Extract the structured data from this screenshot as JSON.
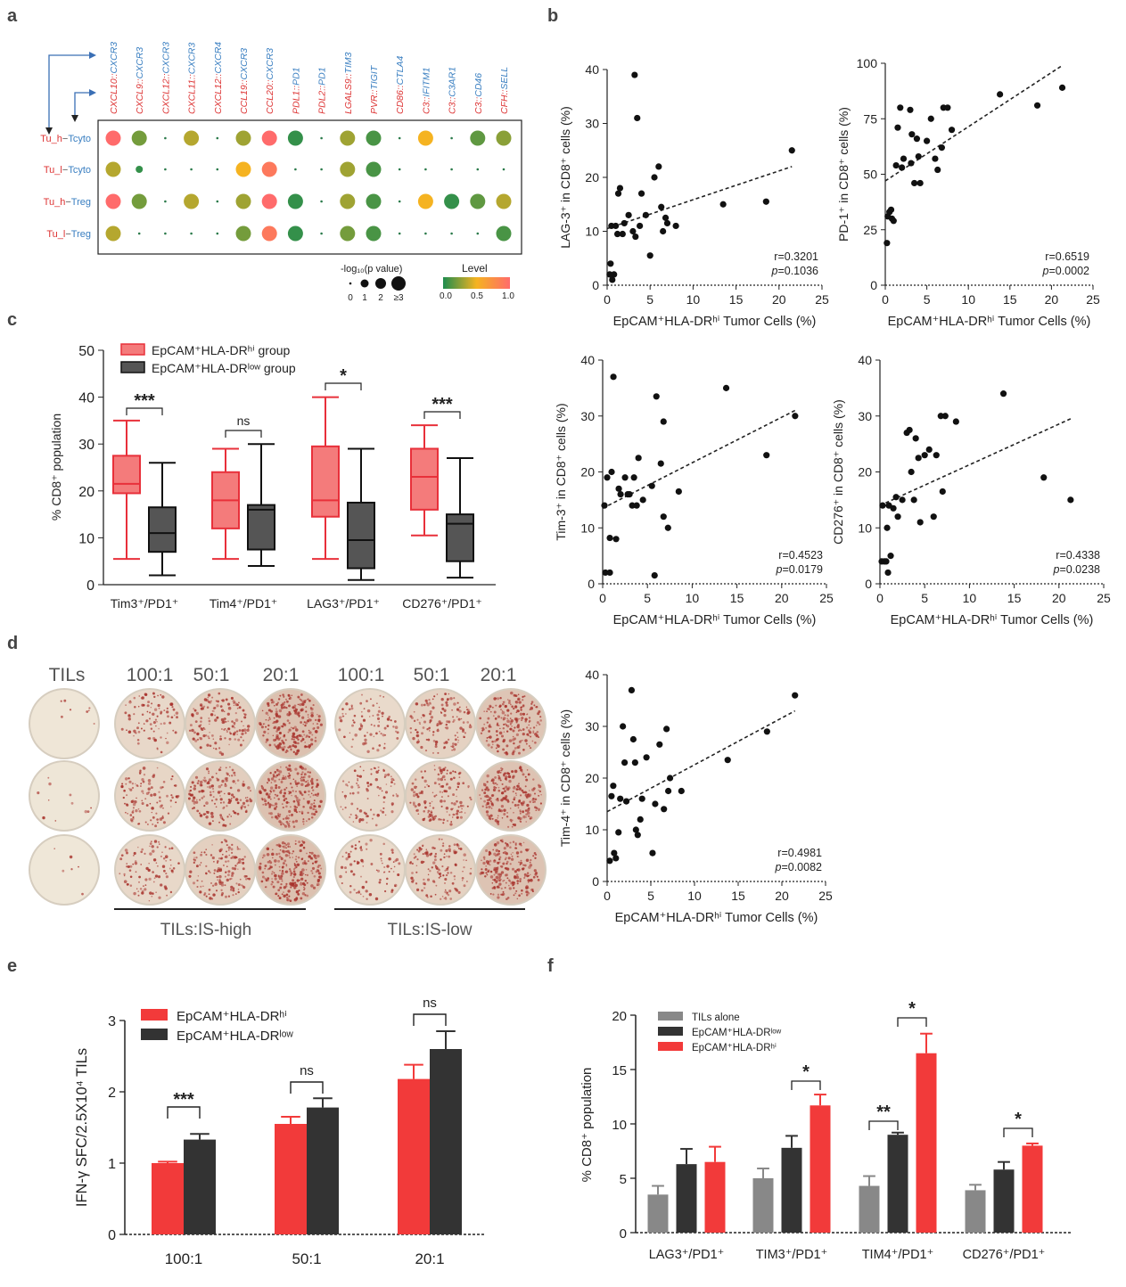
{
  "panels": {
    "a": "a",
    "b": "b",
    "c": "c",
    "d": "d",
    "e": "e",
    "f": "f"
  },
  "chart_data": [
    {
      "id": "a",
      "type": "heatmap",
      "title": "",
      "columns": [
        "CXCL10::CXCR3",
        "CXCL9::CXCR3",
        "CXCL12::CXCR3",
        "CXCL11::CXCR3",
        "CXCL12::CXCR4",
        "CCL19::CXCR3",
        "CCL20::CXCR3",
        "PDL1::PD1",
        "PDL2::PD1",
        "LGALS9::TIM3",
        "PVR::TIGIT",
        "CD86::CTLA4",
        "C3::IFITM1",
        "C3::C3AR1",
        "C3::CD46",
        "CFH::SELL"
      ],
      "ligand_colors": [
        "#d33",
        "#d33",
        "#d33",
        "#d33",
        "#d33",
        "#d33",
        "#d33",
        "#d33",
        "#d33",
        "#d33",
        "#d33",
        "#d33",
        "#d33",
        "#d33",
        "#d33",
        "#d33"
      ],
      "receptor_color": "#3a7fc1",
      "rows": [
        {
          "label": "Tu_h−Tcyto",
          "sender": "Tu_h",
          "receiver": "Tcyto"
        },
        {
          "label": "Tu_l−Tcyto",
          "sender": "Tu_l",
          "receiver": "Tcyto"
        },
        {
          "label": "Tu_h−Treg",
          "sender": "Tu_h",
          "receiver": "Treg"
        },
        {
          "label": "Tu_l−Treg",
          "sender": "Tu_l",
          "receiver": "Treg"
        }
      ],
      "size_pvalue": [
        [
          3,
          3,
          0,
          3,
          0,
          3,
          3,
          3,
          0,
          3,
          3,
          0,
          3,
          0,
          3,
          3
        ],
        [
          3,
          1,
          0,
          0,
          0,
          3,
          3,
          0,
          0,
          3,
          3,
          0,
          0,
          0,
          0,
          0
        ],
        [
          3,
          3,
          0,
          3,
          0,
          3,
          3,
          3,
          0,
          3,
          3,
          0,
          3,
          3,
          3,
          3
        ],
        [
          3,
          0,
          0,
          0,
          0,
          3,
          3,
          3,
          0,
          3,
          3,
          0,
          0,
          0,
          0,
          3
        ]
      ],
      "level": [
        [
          1.0,
          0.2,
          0,
          0.35,
          0,
          0.3,
          1.0,
          0.05,
          0,
          0.3,
          0.1,
          0,
          0.5,
          0,
          0.15,
          0.25
        ],
        [
          0.35,
          0.05,
          0,
          0,
          0,
          0.5,
          0.9,
          0,
          0,
          0.3,
          0.1,
          0,
          0,
          0,
          0,
          0
        ],
        [
          1.0,
          0.2,
          0,
          0.35,
          0,
          0.3,
          1.0,
          0.05,
          0,
          0.3,
          0.1,
          0,
          0.5,
          0.05,
          0.15,
          0.35
        ],
        [
          0.35,
          0,
          0,
          0,
          0,
          0.2,
          0.9,
          0.05,
          0,
          0.2,
          0.1,
          0,
          0,
          0,
          0,
          0.1
        ]
      ],
      "size_legend_title": "-log₁₀(p value)",
      "size_legend_ticks": [
        "0",
        "1",
        "2",
        "≥3"
      ],
      "color_legend_title": "Level",
      "color_legend_ticks": [
        "0.0",
        "0.5",
        "1.0"
      ],
      "colors": {
        "low": "#1e8c4e",
        "mid": "#f5b321",
        "high": "#ff6b6b"
      }
    },
    {
      "id": "b1",
      "type": "scatter",
      "xlabel": "EpCAM⁺HLA-DRʰⁱ Tumor Cells (%)",
      "ylabel": "LAG-3⁺ in CD8⁺ cells (%)",
      "xlim": [
        0,
        25
      ],
      "ylim": [
        0,
        40
      ],
      "xticks": [
        "0",
        "5",
        "10",
        "15",
        "20",
        "25"
      ],
      "yticks": [
        "0",
        "10",
        "20",
        "30",
        "40"
      ],
      "points": [
        [
          0.3,
          2
        ],
        [
          0.4,
          4
        ],
        [
          0.6,
          1
        ],
        [
          0.8,
          2
        ],
        [
          0.5,
          11
        ],
        [
          1,
          11
        ],
        [
          1.2,
          9.5
        ],
        [
          1.3,
          17
        ],
        [
          1.5,
          18
        ],
        [
          1.8,
          9.5
        ],
        [
          2,
          11.5
        ],
        [
          2.5,
          13
        ],
        [
          3,
          10
        ],
        [
          3.2,
          39
        ],
        [
          3.3,
          9
        ],
        [
          3.5,
          31
        ],
        [
          3.8,
          11
        ],
        [
          4,
          17
        ],
        [
          4.5,
          13
        ],
        [
          5,
          5.5
        ],
        [
          5.5,
          20
        ],
        [
          6,
          22
        ],
        [
          6.3,
          14.5
        ],
        [
          6.5,
          10
        ],
        [
          6.8,
          12.5
        ],
        [
          7,
          11.5
        ],
        [
          8,
          11
        ],
        [
          13.5,
          15
        ],
        [
          18.5,
          15.5
        ],
        [
          21.5,
          25
        ]
      ],
      "fit": [
        [
          0,
          10.5
        ],
        [
          21.5,
          22
        ]
      ],
      "r": "r=0.3201",
      "p": "p=0.1036"
    },
    {
      "id": "b2",
      "type": "scatter",
      "xlabel": "EpCAM⁺HLA-DRʰⁱ Tumor Cells (%)",
      "ylabel": "PD-1⁺ in CD8⁺ cells (%)",
      "xlim": [
        0,
        25
      ],
      "ylim": [
        0,
        100
      ],
      "xticks": [
        "0",
        "5",
        "10",
        "15",
        "20",
        "25"
      ],
      "yticks": [
        "0",
        "25",
        "50",
        "75",
        "100"
      ],
      "points": [
        [
          0.2,
          19
        ],
        [
          0.3,
          31
        ],
        [
          0.5,
          33
        ],
        [
          0.7,
          34
        ],
        [
          0.8,
          30
        ],
        [
          1,
          29
        ],
        [
          1.3,
          54
        ],
        [
          1.5,
          71
        ],
        [
          1.8,
          80
        ],
        [
          2,
          53
        ],
        [
          2.2,
          57
        ],
        [
          3,
          79
        ],
        [
          3.1,
          55
        ],
        [
          3.2,
          68
        ],
        [
          3.5,
          46
        ],
        [
          3.8,
          66
        ],
        [
          4,
          58
        ],
        [
          4.2,
          46
        ],
        [
          5,
          65
        ],
        [
          5.5,
          75
        ],
        [
          6,
          57
        ],
        [
          6.3,
          52
        ],
        [
          6.8,
          62
        ],
        [
          7,
          80
        ],
        [
          7.5,
          80
        ],
        [
          8,
          70
        ],
        [
          13.8,
          86
        ],
        [
          18.3,
          81
        ],
        [
          21.3,
          89
        ]
      ],
      "fit": [
        [
          0,
          47
        ],
        [
          21.3,
          99
        ]
      ],
      "r": "r=0.6519",
      "p": "p=0.0002"
    },
    {
      "id": "b3",
      "type": "scatter",
      "xlabel": "EpCAM⁺HLA-DRʰⁱ Tumor Cells (%)",
      "ylabel": "Tim-3⁺ in CD8⁺ cells (%)",
      "xlim": [
        0,
        25
      ],
      "ylim": [
        0,
        40
      ],
      "xticks": [
        "0",
        "5",
        "10",
        "15",
        "20",
        "25"
      ],
      "yticks": [
        "0",
        "10",
        "20",
        "30",
        "40"
      ],
      "points": [
        [
          0.2,
          14
        ],
        [
          0.3,
          2
        ],
        [
          0.5,
          19
        ],
        [
          0.8,
          2
        ],
        [
          0.8,
          8.2
        ],
        [
          1,
          20
        ],
        [
          1.2,
          37
        ],
        [
          1.5,
          8
        ],
        [
          1.8,
          17
        ],
        [
          2,
          16
        ],
        [
          2.5,
          19
        ],
        [
          2.8,
          16
        ],
        [
          3,
          16
        ],
        [
          3.3,
          14
        ],
        [
          3.5,
          19
        ],
        [
          3.8,
          14
        ],
        [
          4,
          22.5
        ],
        [
          4.5,
          15
        ],
        [
          5.5,
          17.5
        ],
        [
          5.8,
          1.5
        ],
        [
          6,
          33.5
        ],
        [
          6.5,
          21.5
        ],
        [
          6.8,
          29
        ],
        [
          6.8,
          12
        ],
        [
          7.3,
          10
        ],
        [
          8.5,
          16.5
        ],
        [
          13.8,
          35
        ],
        [
          18.3,
          23
        ],
        [
          21.5,
          30
        ]
      ],
      "fit": [
        [
          0,
          13.5
        ],
        [
          21.5,
          31
        ]
      ],
      "r": "r=0.4523",
      "p": "p=0.0179"
    },
    {
      "id": "b4",
      "type": "scatter",
      "xlabel": "EpCAM⁺HLA-DRʰⁱ Tumor Cells (%)",
      "ylabel": "CD276⁺ in CD8⁺ cells (%)",
      "xlim": [
        0,
        25
      ],
      "ylim": [
        0,
        40
      ],
      "xticks": [
        "0",
        "5",
        "10",
        "15",
        "20",
        "25"
      ],
      "yticks": [
        "0",
        "10",
        "20",
        "30",
        "40"
      ],
      "points": [
        [
          0.2,
          4
        ],
        [
          0.3,
          14
        ],
        [
          0.5,
          4
        ],
        [
          0.7,
          4
        ],
        [
          0.8,
          10
        ],
        [
          0.9,
          2
        ],
        [
          1,
          14
        ],
        [
          1.2,
          5
        ],
        [
          1.5,
          13.5
        ],
        [
          1.8,
          15.5
        ],
        [
          2,
          12
        ],
        [
          2.5,
          15
        ],
        [
          3,
          27
        ],
        [
          3.3,
          27.5
        ],
        [
          3.5,
          20
        ],
        [
          3.8,
          15
        ],
        [
          4,
          26
        ],
        [
          4.3,
          22.5
        ],
        [
          4.5,
          11
        ],
        [
          5,
          23
        ],
        [
          5.5,
          24
        ],
        [
          6,
          12
        ],
        [
          6.3,
          23
        ],
        [
          6.8,
          30
        ],
        [
          7,
          16.5
        ],
        [
          7.3,
          30
        ],
        [
          8.5,
          29
        ],
        [
          13.8,
          34
        ],
        [
          18.3,
          19
        ],
        [
          21.3,
          15
        ]
      ],
      "fit": [
        [
          0,
          14
        ],
        [
          21.3,
          29.5
        ]
      ],
      "r": "r=0.4338",
      "p": "p=0.0238"
    },
    {
      "id": "b5",
      "type": "scatter",
      "xlabel": "EpCAM⁺HLA-DRʰⁱ Tumor Cells (%)",
      "ylabel": "Tim-4⁺ in CD8⁺ cells (%)",
      "xlim": [
        0,
        25
      ],
      "ylim": [
        0,
        40
      ],
      "xticks": [
        "0",
        "5",
        "10",
        "15",
        "20",
        "25"
      ],
      "yticks": [
        "0",
        "10",
        "20",
        "30",
        "40"
      ],
      "points": [
        [
          0.3,
          4
        ],
        [
          0.5,
          16.5
        ],
        [
          0.7,
          18.5
        ],
        [
          0.8,
          5.5
        ],
        [
          1,
          4.5
        ],
        [
          1.3,
          9.5
        ],
        [
          1.5,
          16
        ],
        [
          1.8,
          30
        ],
        [
          2,
          23
        ],
        [
          2.2,
          15.5
        ],
        [
          2.8,
          37
        ],
        [
          3,
          27.5
        ],
        [
          3.2,
          23
        ],
        [
          3.3,
          10
        ],
        [
          3.5,
          9
        ],
        [
          3.8,
          12
        ],
        [
          4,
          16
        ],
        [
          4.5,
          24
        ],
        [
          5.2,
          5.5
        ],
        [
          5.5,
          15
        ],
        [
          6,
          26.5
        ],
        [
          6.5,
          14
        ],
        [
          6.8,
          29.5
        ],
        [
          7,
          17.5
        ],
        [
          7.2,
          20
        ],
        [
          8.5,
          17.5
        ],
        [
          13.8,
          23.5
        ],
        [
          18.3,
          29
        ],
        [
          21.5,
          36
        ]
      ],
      "fit": [
        [
          0,
          13.5
        ],
        [
          21.5,
          33
        ]
      ],
      "r": "r=0.4981",
      "p": "p=0.0082"
    },
    {
      "id": "c",
      "type": "box",
      "ylabel": "% CD8⁺ population",
      "ylim": [
        0,
        50
      ],
      "yticks": [
        "0",
        "10",
        "20",
        "30",
        "40",
        "50"
      ],
      "categories": [
        "Tim3⁺/PD1⁺",
        "Tim4⁺/PD1⁺",
        "LAG3⁺/PD1⁺",
        "CD276⁺/PD1⁺"
      ],
      "series": [
        {
          "name": "EpCAM⁺HLA-DRʰⁱ group",
          "color": "#f47b7b",
          "edge": "#e8303a",
          "boxes": [
            [
              5.5,
              19.5,
              21.5,
              27.5,
              35
            ],
            [
              5.5,
              12,
              18,
              24,
              29
            ],
            [
              5.5,
              14.5,
              18,
              29.5,
              40
            ],
            [
              10.5,
              16,
              23,
              29,
              34
            ]
          ]
        },
        {
          "name": "EpCAM⁺HLA-DRˡᵒʷ group",
          "color": "#555",
          "edge": "#111",
          "boxes": [
            [
              2,
              7,
              11,
              16.5,
              26
            ],
            [
              4,
              7.5,
              16,
              17,
              30
            ],
            [
              1,
              3.5,
              9.5,
              17.5,
              29
            ],
            [
              1.5,
              5,
              13,
              15,
              27
            ]
          ]
        }
      ],
      "sig": [
        "***",
        "ns",
        "*",
        "***"
      ]
    },
    {
      "id": "d",
      "type": "image-grid",
      "col_labels": [
        "TILs",
        "100:1",
        "50:1",
        "20:1",
        "100:1",
        "50:1",
        "20:1"
      ],
      "group_labels": [
        "TILs:IS-high",
        "TILs:IS-low"
      ],
      "spot_density": [
        [
          0.02,
          0.35,
          0.55,
          0.9,
          0.3,
          0.5,
          0.8
        ],
        [
          0.03,
          0.4,
          0.6,
          0.9,
          0.35,
          0.55,
          0.85
        ],
        [
          0.01,
          0.35,
          0.55,
          0.9,
          0.3,
          0.5,
          0.85
        ]
      ]
    },
    {
      "id": "e",
      "type": "bar",
      "ylabel": "IFN-γ SFC/2.5X10⁴ TILs",
      "ylim": [
        0,
        3
      ],
      "yticks": [
        "0",
        "1",
        "2",
        "3"
      ],
      "categories": [
        "100:1",
        "50:1",
        "20:1"
      ],
      "series": [
        {
          "name": "EpCAM⁺HLA-DRʰⁱ",
          "color": "#f23a3a",
          "values": [
            1.0,
            1.55,
            2.18
          ],
          "errors": [
            0.02,
            0.1,
            0.2
          ]
        },
        {
          "name": "EpCAM⁺HLA-DRˡᵒʷ",
          "color": "#333333",
          "values": [
            1.33,
            1.78,
            2.6
          ],
          "errors": [
            0.08,
            0.13,
            0.25
          ]
        }
      ],
      "sig": [
        "***",
        "ns",
        "ns"
      ]
    },
    {
      "id": "f",
      "type": "bar",
      "ylabel": "% CD8⁺ population",
      "ylim": [
        0,
        20
      ],
      "yticks": [
        "0",
        "5",
        "10",
        "15",
        "20"
      ],
      "categories": [
        "LAG3⁺/PD1⁺",
        "TIM3⁺/PD1⁺",
        "TIM4⁺/PD1⁺",
        "CD276⁺/PD1⁺"
      ],
      "series": [
        {
          "name": "TILs alone",
          "color": "#888888",
          "values": [
            3.5,
            5.0,
            4.3,
            3.9
          ],
          "errors": [
            0.8,
            0.9,
            0.9,
            0.5
          ]
        },
        {
          "name": "EpCAM⁺HLA-DRˡᵒʷ",
          "color": "#333333",
          "values": [
            6.3,
            7.8,
            9.0,
            5.8
          ],
          "errors": [
            1.4,
            1.1,
            0.2,
            0.7
          ]
        },
        {
          "name": "EpCAM⁺HLA-DRʰⁱ",
          "color": "#f23a3a",
          "values": [
            6.5,
            11.7,
            16.5,
            8.0
          ],
          "errors": [
            1.4,
            1.0,
            1.8,
            0.2
          ]
        }
      ],
      "sig": [
        "",
        "*",
        "**,*",
        "*"
      ]
    }
  ]
}
